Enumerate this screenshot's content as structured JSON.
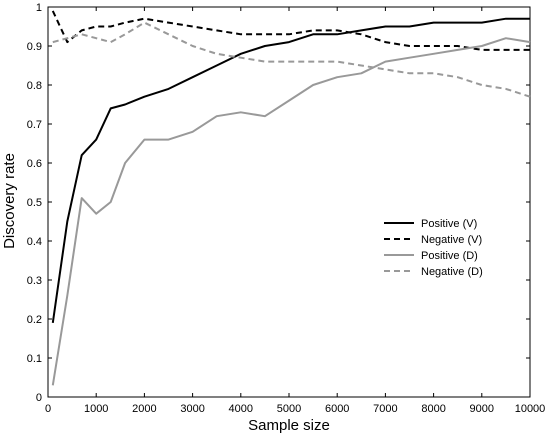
{
  "chart_data": {
    "type": "line",
    "title": "",
    "xlabel": "Sample size",
    "ylabel": "Discovery rate",
    "xlim": [
      0,
      10000
    ],
    "ylim": [
      0,
      1
    ],
    "xticks": [
      0,
      1000,
      2000,
      3000,
      4000,
      5000,
      6000,
      7000,
      8000,
      9000,
      10000
    ],
    "yticks": [
      0,
      0.1,
      0.2,
      0.3,
      0.4,
      0.5,
      0.6,
      0.7,
      0.8,
      0.9,
      1
    ],
    "ytick_labels": [
      "0",
      "0.1",
      "0.2",
      "0.3",
      "0.4",
      "0.5",
      "0.6",
      "0.7",
      "0.8",
      "0.9",
      "1"
    ],
    "grid": false,
    "legend_position": "right-middle",
    "x": [
      100,
      400,
      700,
      1000,
      1300,
      1600,
      2000,
      2500,
      3000,
      3500,
      4000,
      4500,
      5000,
      5500,
      6000,
      6500,
      7000,
      7500,
      8000,
      8500,
      9000,
      9500,
      10000
    ],
    "series": [
      {
        "name": "Positive (V)",
        "color": "#000000",
        "dash": "solid",
        "values": [
          0.19,
          0.45,
          0.62,
          0.66,
          0.74,
          0.75,
          0.77,
          0.79,
          0.82,
          0.85,
          0.88,
          0.9,
          0.91,
          0.93,
          0.93,
          0.94,
          0.95,
          0.95,
          0.96,
          0.96,
          0.96,
          0.97,
          0.97
        ]
      },
      {
        "name": "Negative (V)",
        "color": "#000000",
        "dash": "dashed",
        "values": [
          0.99,
          0.91,
          0.94,
          0.95,
          0.95,
          0.96,
          0.97,
          0.96,
          0.95,
          0.94,
          0.93,
          0.93,
          0.93,
          0.94,
          0.94,
          0.93,
          0.91,
          0.9,
          0.9,
          0.9,
          0.89,
          0.89,
          0.89
        ]
      },
      {
        "name": "Positive (D)",
        "color": "#999999",
        "dash": "solid",
        "values": [
          0.03,
          0.26,
          0.51,
          0.47,
          0.5,
          0.6,
          0.66,
          0.66,
          0.68,
          0.72,
          0.73,
          0.72,
          0.76,
          0.8,
          0.82,
          0.83,
          0.86,
          0.87,
          0.88,
          0.89,
          0.9,
          0.92,
          0.91
        ]
      },
      {
        "name": "Negative (D)",
        "color": "#999999",
        "dash": "dashed",
        "values": [
          0.91,
          0.92,
          0.93,
          0.92,
          0.91,
          0.93,
          0.96,
          0.93,
          0.9,
          0.88,
          0.87,
          0.86,
          0.86,
          0.86,
          0.86,
          0.85,
          0.84,
          0.83,
          0.83,
          0.82,
          0.8,
          0.79,
          0.77
        ]
      }
    ]
  }
}
